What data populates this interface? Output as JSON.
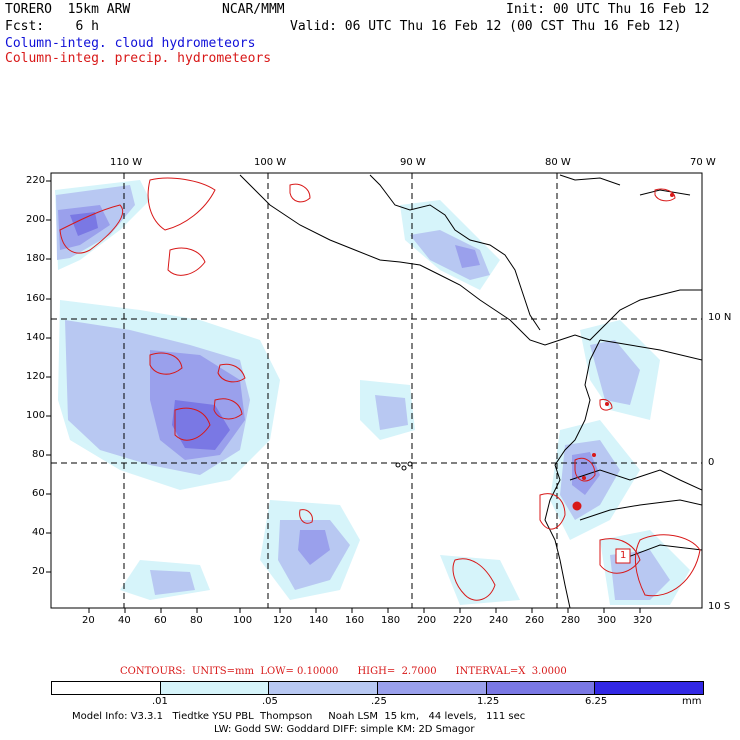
{
  "header": {
    "model": "TORERO  15km ARW",
    "center": "NCAR/MMM",
    "init": "Init: 00 UTC Thu 16 Feb 12",
    "fcst": "Fcst:    6 h",
    "valid": "Valid: 06 UTC Thu 16 Feb 12 (00 CST Thu 16 Feb 12)",
    "field1": "Column-integ. cloud hydrometeors",
    "field2": "Column-integ. precip. hydrometeors"
  },
  "map": {
    "lon_labels": [
      "110 W",
      "100 W",
      "90 W",
      "80 W",
      "70 W"
    ],
    "lat_labels": [
      "10 N",
      "0",
      "10 S"
    ],
    "y_ticks": [
      "220",
      "200",
      "180",
      "160",
      "140",
      "120",
      "100",
      "80",
      "60",
      "40",
      "20"
    ],
    "x_ticks": [
      "20",
      "40",
      "60",
      "80",
      "100",
      "120",
      "140",
      "160",
      "180",
      "200",
      "220",
      "240",
      "260",
      "280",
      "300",
      "320"
    ],
    "contour_label": "1"
  },
  "contours_info": "CONTOURS:  UNITS=mm  LOW= 0.10000      HIGH=  2.7000      INTERVAL=X  3.0000",
  "colorbar": {
    "labels": [
      ".01",
      ".05",
      ".25",
      "1.25",
      "6.25"
    ],
    "units": "mm",
    "colors": [
      "#ffffff",
      "#d6f4fa",
      "#b8c8f2",
      "#9aa0ec",
      "#7a78e4",
      "#5a50e0",
      "#3228e4"
    ]
  },
  "footer": {
    "line1": "Model Info: V3.3.1   Tiedtke YSU PBL  Thompson     Noah LSM  15 km,   44 levels,   111 sec",
    "line2": "LW: Godd SW: Goddard DIFF: simple KM: 2D Smagor"
  }
}
